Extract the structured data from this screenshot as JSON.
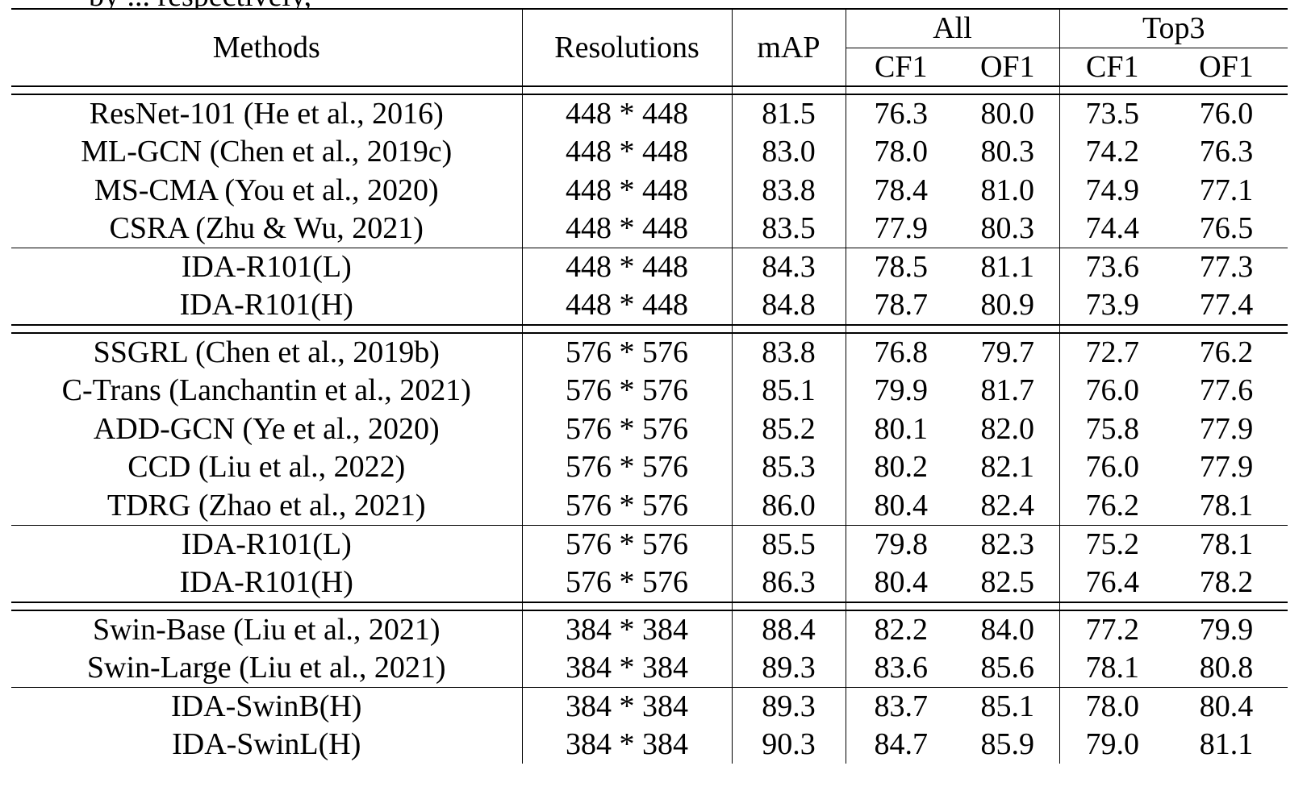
{
  "caption_fragment": "by ... respectively,",
  "header": {
    "methods": "Methods",
    "resolutions": "Resolutions",
    "map": "mAP",
    "group_all": "All",
    "group_top3": "Top3",
    "cf1": "CF1",
    "of1": "OF1"
  },
  "groups": [
    {
      "rows": [
        {
          "method": "ResNet-101 (He et al., 2016)",
          "res": "448 * 448",
          "map": "81.5",
          "all_cf1": "76.3",
          "all_of1": "80.0",
          "top_cf1": "73.5",
          "top_of1": "76.0",
          "bold": []
        },
        {
          "method": "ML-GCN (Chen et al., 2019c)",
          "res": "448 * 448",
          "map": "83.0",
          "all_cf1": "78.0",
          "all_of1": "80.3",
          "top_cf1": "74.2",
          "top_of1": "76.3",
          "bold": []
        },
        {
          "method": "MS-CMA (You et al., 2020)",
          "res": "448 * 448",
          "map": "83.8",
          "all_cf1": "78.4",
          "all_of1": "81.0",
          "top_cf1": "74.9",
          "top_of1": "77.1",
          "bold": [
            "top_cf1"
          ]
        },
        {
          "method": "CSRA (Zhu & Wu, 2021)",
          "res": "448 * 448",
          "map": "83.5",
          "all_cf1": "77.9",
          "all_of1": "80.3",
          "top_cf1": "74.4",
          "top_of1": "76.5",
          "bold": []
        }
      ],
      "ours": [
        {
          "method": "IDA-R101(L)",
          "res": "448 * 448",
          "map": "84.3",
          "all_cf1": "78.5",
          "all_of1": "81.1",
          "top_cf1": "73.6",
          "top_of1": "77.3",
          "bold": [
            "method",
            "all_of1"
          ]
        },
        {
          "method": "IDA-R101(H)",
          "res": "448 * 448",
          "map": "84.8",
          "all_cf1": "78.7",
          "all_of1": "80.9",
          "top_cf1": "73.9",
          "top_of1": "77.4",
          "bold": [
            "method",
            "map",
            "all_cf1",
            "top_of1"
          ]
        }
      ]
    },
    {
      "rows": [
        {
          "method": "SSGRL (Chen et al., 2019b)",
          "res": "576 * 576",
          "map": "83.8",
          "all_cf1": "76.8",
          "all_of1": "79.7",
          "top_cf1": "72.7",
          "top_of1": "76.2",
          "bold": []
        },
        {
          "method": "C-Trans (Lanchantin et al., 2021)",
          "res": "576 * 576",
          "map": "85.1",
          "all_cf1": "79.9",
          "all_of1": "81.7",
          "top_cf1": "76.0",
          "top_of1": "77.6",
          "bold": []
        },
        {
          "method": "ADD-GCN (Ye et al., 2020)",
          "res": "576 * 576",
          "map": "85.2",
          "all_cf1": "80.1",
          "all_of1": "82.0",
          "top_cf1": "75.8",
          "top_of1": "77.9",
          "bold": []
        },
        {
          "method": "CCD (Liu et al., 2022)",
          "res": "576 * 576",
          "map": "85.3",
          "all_cf1": "80.2",
          "all_of1": "82.1",
          "top_cf1": "76.0",
          "top_of1": "77.9",
          "bold": []
        },
        {
          "method": "TDRG (Zhao et al., 2021)",
          "res": "576 * 576",
          "map": "86.0",
          "all_cf1": "80.4",
          "all_of1": "82.4",
          "top_cf1": "76.2",
          "top_of1": "78.1",
          "bold": [
            "all_cf1"
          ]
        }
      ],
      "ours": [
        {
          "method": "IDA-R101(L)",
          "res": "576 * 576",
          "map": "85.5",
          "all_cf1": "79.8",
          "all_of1": "82.3",
          "top_cf1": "75.2",
          "top_of1": "78.1",
          "bold": [
            "method"
          ]
        },
        {
          "method": "IDA-R101(H)",
          "res": "576 * 576",
          "map": "86.3",
          "all_cf1": "80.4",
          "all_of1": "82.5",
          "top_cf1": "76.4",
          "top_of1": "78.2",
          "bold": [
            "method",
            "map",
            "all_cf1",
            "all_of1",
            "top_cf1",
            "top_of1"
          ]
        }
      ]
    },
    {
      "rows": [
        {
          "method": "Swin-Base (Liu et al., 2021)",
          "res": "384 * 384",
          "map": "88.4",
          "all_cf1": "82.2",
          "all_of1": "84.0",
          "top_cf1": "77.2",
          "top_of1": "79.9",
          "bold": []
        },
        {
          "method": "Swin-Large (Liu et al., 2021)",
          "res": "384 * 384",
          "map": "89.3",
          "all_cf1": "83.6",
          "all_of1": "85.6",
          "top_cf1": "78.1",
          "top_of1": "80.8",
          "bold": []
        }
      ],
      "ours": [
        {
          "method": "IDA-SwinB(H)",
          "res": "384 * 384",
          "map": "89.3",
          "all_cf1": "83.7",
          "all_of1": "85.1",
          "top_cf1": "78.0",
          "top_of1": "80.4",
          "bold": [
            "method"
          ]
        },
        {
          "method": "IDA-SwinL(H)",
          "res": "384 * 384",
          "map": "90.3",
          "all_cf1": "84.7",
          "all_of1": "85.9",
          "top_cf1": "79.0",
          "top_of1": "81.1",
          "bold": [
            "method",
            "map",
            "all_cf1",
            "all_of1",
            "top_cf1",
            "top_of1"
          ]
        }
      ]
    }
  ]
}
